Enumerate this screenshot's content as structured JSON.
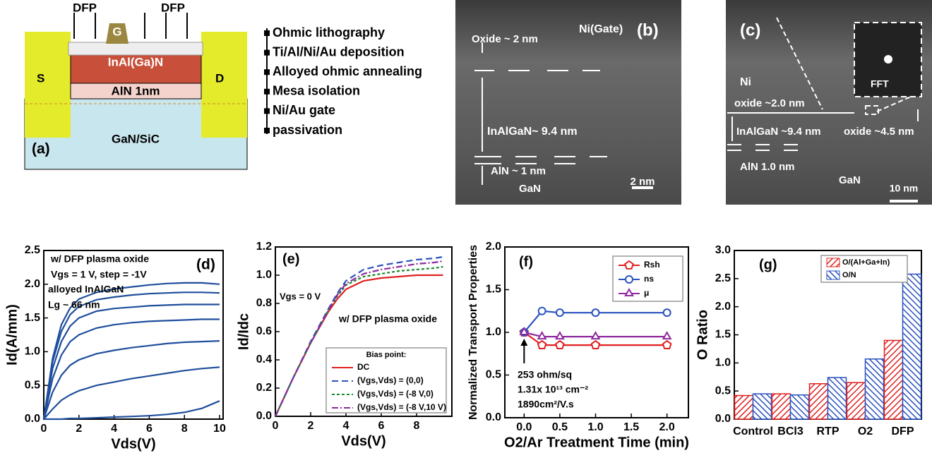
{
  "schematic": {
    "dfp_left": "DFP",
    "dfp_right": "DFP",
    "gate": "G",
    "barrier": "InAl(Ga)N",
    "spacer": "AlN 1nm",
    "source": "S",
    "drain": "D",
    "substrate": "GaN/SiC",
    "panel": "(a)"
  },
  "process_steps": [
    "Ohmic lithography",
    "Ti/Al/Ni/Au deposition",
    "Alloyed ohmic  annealing",
    "Mesa isolation",
    "Ni/Au gate",
    "passivation"
  ],
  "micrograph_b": {
    "panel": "(b)",
    "gate": "Ni(Gate)",
    "oxide": "Oxide ~ 2 nm",
    "barrier": "InAlGaN~ 9.4 nm",
    "spacer": "AlN ~ 1 nm",
    "substrate": "GaN",
    "scale_bar": "2 nm"
  },
  "micrograph_c": {
    "panel": "(c)",
    "metal": "Ni",
    "fft": "FFT",
    "oxide_top": "oxide ~2.0 nm",
    "barrier": "InAlGaN ~9.4 nm",
    "oxide_side": "oxide ~4.5 nm",
    "spacer": "AlN 1.0 nm",
    "substrate": "GaN",
    "scale_bar": "10 nm"
  },
  "chart_data": [
    {
      "type": "line",
      "xlabel": "Vds(V)",
      "ylabel": "Id(A/mm)",
      "annotations": [
        "w/ DFP plasma oxide",
        "Vgs = 1 V, step = -1V",
        "alloyed InAlGaN",
        "Lg ~ 66 nm",
        "(d)"
      ],
      "xlim": [
        0,
        10.2
      ],
      "xticks": [
        0,
        2,
        4,
        6,
        8,
        10
      ],
      "ylim": [
        0,
        2.5
      ],
      "yticks": [
        {
          "value": 0,
          "label": "0.0"
        },
        {
          "value": 0.5,
          "label": "0.5"
        },
        {
          "value": 1,
          "label": "1.0"
        },
        {
          "value": 1.5,
          "label": "1.5"
        },
        {
          "value": 2,
          "label": "2.0"
        },
        {
          "value": 2.5,
          "label": "2.5"
        }
      ],
      "x": [
        0,
        0.5,
        1,
        1.5,
        2,
        3,
        4,
        5,
        6,
        7,
        8,
        9,
        10
      ],
      "series": [
        {
          "color": "#1f4e9c",
          "values": [
            0,
            0.9,
            1.4,
            1.65,
            1.78,
            1.88,
            1.93,
            1.96,
            1.99,
            2.01,
            2.02,
            2.02,
            2.0
          ]
        },
        {
          "color": "#1f4e9c",
          "values": [
            0,
            0.85,
            1.3,
            1.55,
            1.67,
            1.77,
            1.81,
            1.84,
            1.86,
            1.87,
            1.88,
            1.88,
            1.87
          ]
        },
        {
          "color": "#1f4e9c",
          "values": [
            0,
            0.75,
            1.15,
            1.38,
            1.5,
            1.6,
            1.64,
            1.66,
            1.68,
            1.69,
            1.7,
            1.7,
            1.7
          ]
        },
        {
          "color": "#1f4e9c",
          "values": [
            0,
            0.6,
            0.95,
            1.15,
            1.25,
            1.35,
            1.4,
            1.43,
            1.45,
            1.46,
            1.47,
            1.48,
            1.48
          ]
        },
        {
          "color": "#1f4e9c",
          "values": [
            0,
            0.4,
            0.65,
            0.8,
            0.88,
            0.97,
            1.02,
            1.06,
            1.09,
            1.12,
            1.14,
            1.15,
            1.16
          ]
        },
        {
          "color": "#1f4e9c",
          "values": [
            0,
            0.15,
            0.28,
            0.36,
            0.42,
            0.5,
            0.55,
            0.6,
            0.64,
            0.68,
            0.72,
            0.75,
            0.77
          ]
        },
        {
          "color": "#1f4e9c",
          "values": [
            0,
            0,
            0,
            0.01,
            0.01,
            0.02,
            0.03,
            0.04,
            0.05,
            0.07,
            0.1,
            0.16,
            0.27
          ]
        }
      ]
    },
    {
      "type": "line",
      "xlabel": "Vds(V)",
      "ylabel": "Id/Idc",
      "annotations": [
        "(e)",
        "Vgs = 0 V",
        "w/ DFP plasma oxide"
      ],
      "legend_title": "Bias point:",
      "xlim": [
        0,
        10
      ],
      "xticks": [
        0,
        2,
        4,
        6,
        8
      ],
      "ylim": [
        0,
        1.2
      ],
      "yticks": [
        {
          "value": 0,
          "label": "0.0"
        },
        {
          "value": 0.2,
          "label": "0.2"
        },
        {
          "value": 0.4,
          "label": "0.4"
        },
        {
          "value": 0.6,
          "label": "0.6"
        },
        {
          "value": 0.8,
          "label": "0.8"
        },
        {
          "value": 1,
          "label": "1.0"
        },
        {
          "value": 1.2,
          "label": "1.2"
        }
      ],
      "x": [
        0,
        1,
        2,
        3,
        3.5,
        4,
        5,
        6,
        7,
        8,
        9,
        9.5
      ],
      "series": [
        {
          "name": "DC",
          "color": "#e02020",
          "dash": "none",
          "values": [
            0,
            0.27,
            0.52,
            0.74,
            0.83,
            0.9,
            0.96,
            0.98,
            0.99,
            1.0,
            1.0,
            1.0
          ]
        },
        {
          "name": "(Vgs,Vds) = (0,0)",
          "color": "#2a52be",
          "dash": "9 5",
          "values": [
            0,
            0.27,
            0.53,
            0.76,
            0.87,
            0.96,
            1.04,
            1.07,
            1.09,
            1.11,
            1.12,
            1.13
          ]
        },
        {
          "name": "(Vgs,Vds) = (-8 V,0)",
          "color": "#1a8a2a",
          "dash": "4 3",
          "values": [
            0,
            0.27,
            0.52,
            0.75,
            0.85,
            0.93,
            0.99,
            1.01,
            1.03,
            1.04,
            1.05,
            1.06
          ]
        },
        {
          "name": "(Vgs,Vds) = (-8 V,10 V)",
          "color": "#8e2a9e",
          "dash": "9 3 2 3",
          "values": [
            0,
            0.27,
            0.52,
            0.75,
            0.86,
            0.94,
            1.01,
            1.04,
            1.06,
            1.08,
            1.09,
            1.1
          ]
        }
      ]
    },
    {
      "type": "line",
      "xlabel": "O2/Ar Treatment Time (min)",
      "ylabel": "Normalized Transport Properties",
      "annotations": [
        "(f)",
        "253 ohm/sq",
        "1.31x 10¹³ cm⁻²",
        "1890cm²/V.s"
      ],
      "xlim": [
        -0.27,
        2.3
      ],
      "xticks": [
        {
          "value": 0,
          "label": "0.0"
        },
        {
          "value": 0.5,
          "label": "0.5"
        },
        {
          "value": 1,
          "label": "1.0"
        },
        {
          "value": 1.5,
          "label": "1.5"
        },
        {
          "value": 2,
          "label": "2.0"
        }
      ],
      "ylim": [
        0,
        2
      ],
      "yticks": [
        {
          "value": 0,
          "label": "0.0"
        },
        {
          "value": 0.5,
          "label": "0.5"
        },
        {
          "value": 1,
          "label": "1.0"
        },
        {
          "value": 1.5,
          "label": "1.5"
        },
        {
          "value": 2,
          "label": "2.0"
        }
      ],
      "x": [
        0,
        0.25,
        0.5,
        1,
        2
      ],
      "series": [
        {
          "name": "Rsh",
          "color": "#e02020",
          "marker": "pentagon",
          "values": [
            1.0,
            0.85,
            0.85,
            0.85,
            0.85
          ]
        },
        {
          "name": "ns",
          "color": "#2a52be",
          "marker": "circle",
          "values": [
            1.0,
            1.25,
            1.23,
            1.23,
            1.23
          ]
        },
        {
          "name": "μ",
          "color": "#8e2a9e",
          "marker": "triangle",
          "values": [
            1.0,
            0.95,
            0.95,
            0.95,
            0.95
          ]
        }
      ]
    },
    {
      "type": "bar",
      "ylabel": "O Ratio",
      "annotations": [
        "(g)"
      ],
      "categories": [
        "Control",
        "BCl3",
        "RTP",
        "O2",
        "DFP"
      ],
      "ylim": [
        0,
        3
      ],
      "yticks": [
        {
          "value": 0,
          "label": "0.0"
        },
        {
          "value": 0.5,
          "label": "0.5"
        },
        {
          "value": 1,
          "label": "1.0"
        },
        {
          "value": 1.5,
          "label": "1.5"
        },
        {
          "value": 2,
          "label": "2.0"
        },
        {
          "value": 2.5,
          "label": "2.5"
        },
        {
          "value": 3,
          "label": "3.0"
        }
      ],
      "series": [
        {
          "name": "O/(Al+Ga+In)",
          "color": "#e02020",
          "values": [
            0.42,
            0.45,
            0.63,
            0.65,
            1.4
          ]
        },
        {
          "name": "O/N",
          "color": "#2a52be",
          "values": [
            0.45,
            0.43,
            0.74,
            1.07,
            2.58
          ]
        }
      ]
    }
  ]
}
